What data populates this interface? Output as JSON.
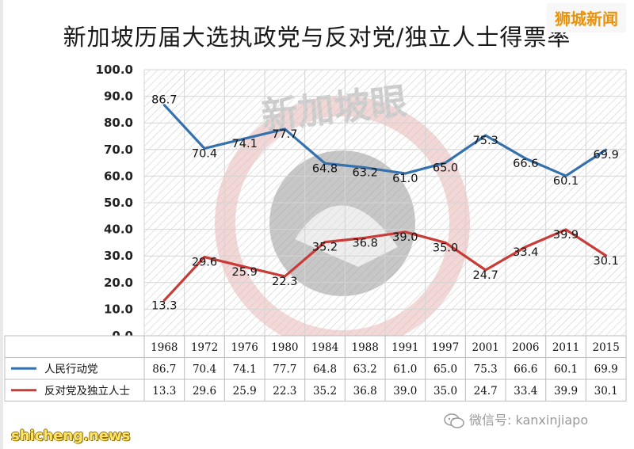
{
  "corner_logo": "狮城新闻",
  "watermark": {
    "wechat_label": "微信号: kanxinjiapo",
    "site": "shicheng.news",
    "stamp_text": "新加坡眼"
  },
  "colors": {
    "ruling": "#3471ad",
    "opposition": "#c93b36",
    "grid_hatch": "#cfcfcf",
    "stamp": "#e9b8b8"
  },
  "chart_data": {
    "type": "line",
    "title": "新加坡历届大选执政党与反对党/独立人士得票率",
    "xlabel": "",
    "ylabel": "",
    "categories": [
      "1968",
      "1972",
      "1976",
      "1980",
      "1984",
      "1988",
      "1991",
      "1997",
      "2001",
      "2006",
      "2011",
      "2015"
    ],
    "ylim": [
      0,
      100
    ],
    "yticks": [
      "0.0",
      "10.0",
      "20.0",
      "30.0",
      "40.0",
      "50.0",
      "60.0",
      "70.0",
      "80.0",
      "90.0",
      "100.0"
    ],
    "grid": true,
    "legend": "table-below",
    "series": [
      {
        "name": "人民行动党",
        "color": "#3471ad",
        "values": [
          86.7,
          70.4,
          74.1,
          77.7,
          64.8,
          63.2,
          61.0,
          65.0,
          75.3,
          66.6,
          60.1,
          69.9
        ],
        "labels": [
          "86.7",
          "70.4",
          "74.1",
          "77.7",
          "64.8",
          "63.2",
          "61.0",
          "65.0",
          "75.3",
          "66.6",
          "60.1",
          "69.9"
        ]
      },
      {
        "name": "反对党及独立人士",
        "color": "#c93b36",
        "values": [
          13.3,
          29.6,
          25.9,
          22.3,
          35.2,
          36.8,
          39.0,
          35.0,
          24.7,
          33.4,
          39.9,
          30.1
        ],
        "labels": [
          "13.3",
          "29.6",
          "25.9",
          "22.3",
          "35.2",
          "36.8",
          "39.0",
          "35.0",
          "24.7",
          "33.4",
          "39.9",
          "30.1"
        ]
      }
    ]
  }
}
